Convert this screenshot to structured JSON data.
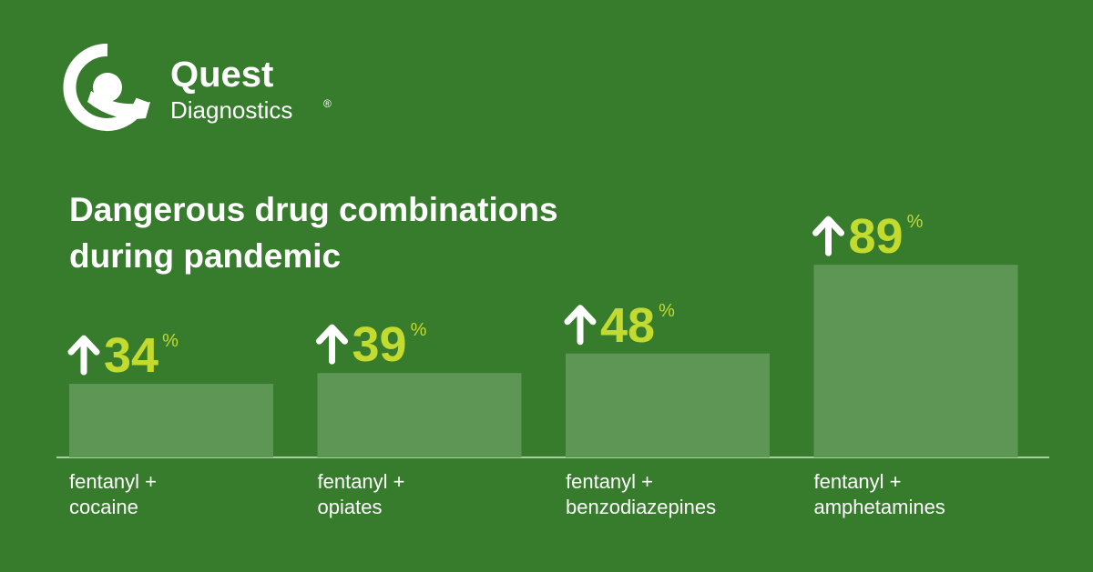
{
  "logo": {
    "name": "Quest",
    "sub": "Diagnostics",
    "mark": "®"
  },
  "chart_data": {
    "type": "bar",
    "title": [
      "Dangerous drug combinations",
      "during pandemic"
    ],
    "categories": [
      [
        "fentanyl +",
        "cocaine"
      ],
      [
        "fentanyl +",
        "opiates"
      ],
      [
        "fentanyl +",
        "benzodiazepines"
      ],
      [
        "fentanyl +",
        "amphetamines"
      ]
    ],
    "values": [
      34,
      39,
      48,
      89
    ],
    "value_suffix": "%",
    "color": "#5e9656",
    "label_color": "#c3da2f"
  }
}
